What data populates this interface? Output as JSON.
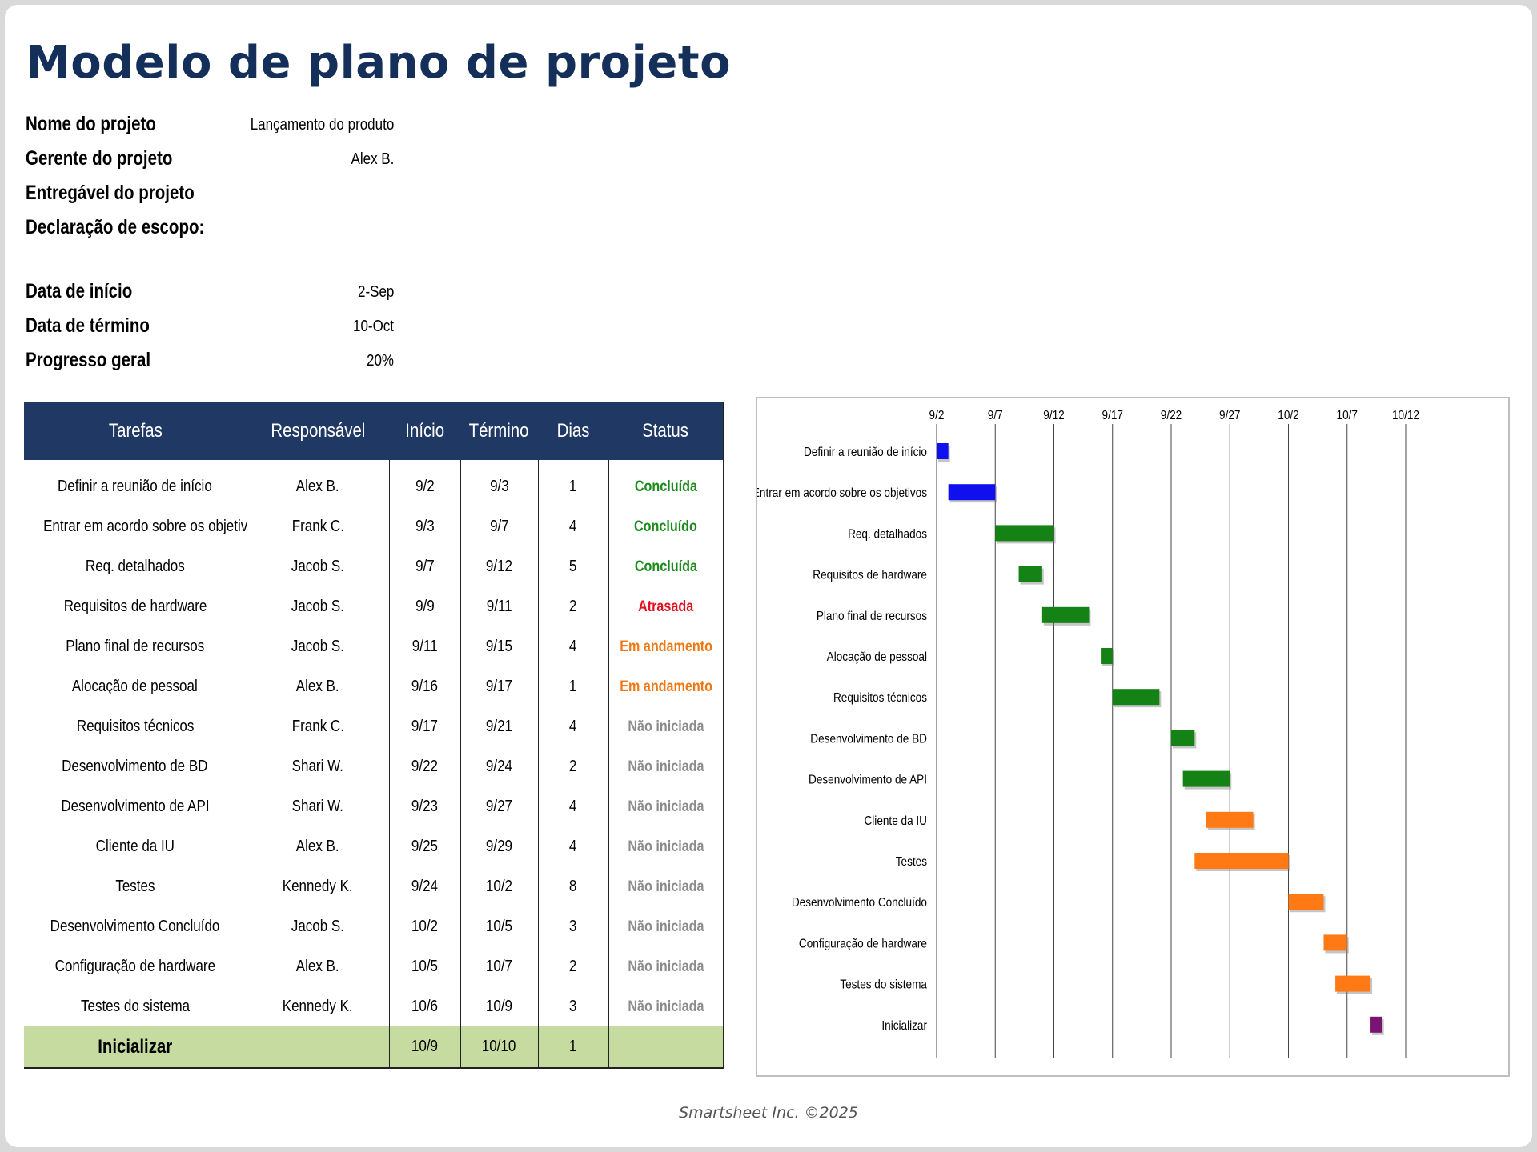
{
  "title": "Modelo de plano de projeto",
  "info": [
    {
      "label": "Nome do projeto",
      "value": "Lançamento do produto"
    },
    {
      "label": "Gerente do projeto",
      "value": "Alex B."
    },
    {
      "label": "Entregável do projeto",
      "value": ""
    },
    {
      "label": "Declaração de escopo:",
      "value": ""
    },
    {
      "label": "Data de início",
      "value": "2-Sep"
    },
    {
      "label": "Data de término",
      "value": "10-Oct"
    },
    {
      "label": "Progresso geral",
      "value": "20%"
    }
  ],
  "table": {
    "headers": [
      "Tarefas",
      "Responsável",
      "Início",
      "Término",
      "Dias",
      "Status"
    ],
    "rows": [
      {
        "task": "Definir a reunião de início",
        "owner": "Alex B.",
        "start": "9/2",
        "end": "9/3",
        "days": "1",
        "status": "Concluída",
        "status_color": "#1a8a1a"
      },
      {
        "task": "Entrar em acordo sobre os objetivos",
        "owner": "Frank C.",
        "start": "9/3",
        "end": "9/7",
        "days": "4",
        "status": "Concluído",
        "status_color": "#1a8a1a"
      },
      {
        "task": "Req. detalhados",
        "owner": "Jacob S.",
        "start": "9/7",
        "end": "9/12",
        "days": "5",
        "status": "Concluída",
        "status_color": "#1a8a1a"
      },
      {
        "task": "Requisitos de hardware",
        "owner": "Jacob S.",
        "start": "9/9",
        "end": "9/11",
        "days": "2",
        "status": "Atrasada",
        "status_color": "#e0101e"
      },
      {
        "task": "Plano final de recursos",
        "owner": "Jacob S.",
        "start": "9/11",
        "end": "9/15",
        "days": "4",
        "status": "Em andamento",
        "status_color": "#f07814"
      },
      {
        "task": "Alocação de pessoal",
        "owner": "Alex B.",
        "start": "9/16",
        "end": "9/17",
        "days": "1",
        "status": "Em andamento",
        "status_color": "#f07814"
      },
      {
        "task": "Requisitos técnicos",
        "owner": "Frank C.",
        "start": "9/17",
        "end": "9/21",
        "days": "4",
        "status": "Não iniciada",
        "status_color": "#8c8c8c"
      },
      {
        "task": "Desenvolvimento de BD",
        "owner": "Shari W.",
        "start": "9/22",
        "end": "9/24",
        "days": "2",
        "status": "Não iniciada",
        "status_color": "#8c8c8c"
      },
      {
        "task": "Desenvolvimento de API",
        "owner": "Shari W.",
        "start": "9/23",
        "end": "9/27",
        "days": "4",
        "status": "Não iniciada",
        "status_color": "#8c8c8c"
      },
      {
        "task": "Cliente da IU",
        "owner": "Alex B.",
        "start": "9/25",
        "end": "9/29",
        "days": "4",
        "status": "Não iniciada",
        "status_color": "#8c8c8c"
      },
      {
        "task": "Testes",
        "owner": "Kennedy K.",
        "start": "9/24",
        "end": "10/2",
        "days": "8",
        "status": "Não iniciada",
        "status_color": "#8c8c8c"
      },
      {
        "task": "Desenvolvimento Concluído",
        "owner": "Jacob S.",
        "start": "10/2",
        "end": "10/5",
        "days": "3",
        "status": "Não iniciada",
        "status_color": "#8c8c8c"
      },
      {
        "task": "Configuração de hardware",
        "owner": "Alex B.",
        "start": "10/5",
        "end": "10/7",
        "days": "2",
        "status": "Não iniciada",
        "status_color": "#8c8c8c"
      },
      {
        "task": "Testes do sistema",
        "owner": "Kennedy K.",
        "start": "10/6",
        "end": "10/9",
        "days": "3",
        "status": "Não iniciada",
        "status_color": "#8c8c8c"
      }
    ],
    "final_row": {
      "task": "Inicializar",
      "owner": "",
      "start": "10/9",
      "end": "10/10",
      "days": "1",
      "status": ""
    }
  },
  "chart_data": {
    "type": "bar",
    "orientation": "horizontal-gantt",
    "x_ticks": [
      "9/2",
      "9/7",
      "9/12",
      "9/17",
      "9/22",
      "9/27",
      "10/2",
      "10/7",
      "10/12"
    ],
    "xlim": [
      "2025-09-02",
      "2025-10-12"
    ],
    "grid": true,
    "legend": "none",
    "categories": [
      "Definir a reunião de início",
      "Entrar em acordo sobre os objetivos",
      "Req. detalhados",
      "Requisitos de hardware",
      "Plano final de recursos",
      "Alocação de pessoal",
      "Requisitos técnicos",
      "Desenvolvimento de BD",
      "Desenvolvimento de API",
      "Cliente da IU",
      "Testes",
      "Desenvolvimento Concluído",
      "Configuração de hardware",
      "Testes do sistema",
      "Inicializar"
    ],
    "bars": [
      {
        "start": "2025-09-02",
        "end": "2025-09-03",
        "color": "#1010ee"
      },
      {
        "start": "2025-09-03",
        "end": "2025-09-07",
        "color": "#1010ee"
      },
      {
        "start": "2025-09-07",
        "end": "2025-09-12",
        "color": "#148214"
      },
      {
        "start": "2025-09-09",
        "end": "2025-09-11",
        "color": "#148214"
      },
      {
        "start": "2025-09-11",
        "end": "2025-09-15",
        "color": "#148214"
      },
      {
        "start": "2025-09-16",
        "end": "2025-09-17",
        "color": "#148214"
      },
      {
        "start": "2025-09-17",
        "end": "2025-09-21",
        "color": "#148214"
      },
      {
        "start": "2025-09-22",
        "end": "2025-09-24",
        "color": "#148214"
      },
      {
        "start": "2025-09-23",
        "end": "2025-09-27",
        "color": "#148214"
      },
      {
        "start": "2025-09-25",
        "end": "2025-09-29",
        "color": "#ff7a14"
      },
      {
        "start": "2025-09-24",
        "end": "2025-10-02",
        "color": "#ff7a14"
      },
      {
        "start": "2025-10-02",
        "end": "2025-10-05",
        "color": "#ff7a14"
      },
      {
        "start": "2025-10-05",
        "end": "2025-10-07",
        "color": "#ff7a14"
      },
      {
        "start": "2025-10-06",
        "end": "2025-10-09",
        "color": "#ff7a14"
      },
      {
        "start": "2025-10-09",
        "end": "2025-10-10",
        "color": "#7a1470"
      }
    ]
  },
  "footer": "Smartsheet Inc. ©2025"
}
